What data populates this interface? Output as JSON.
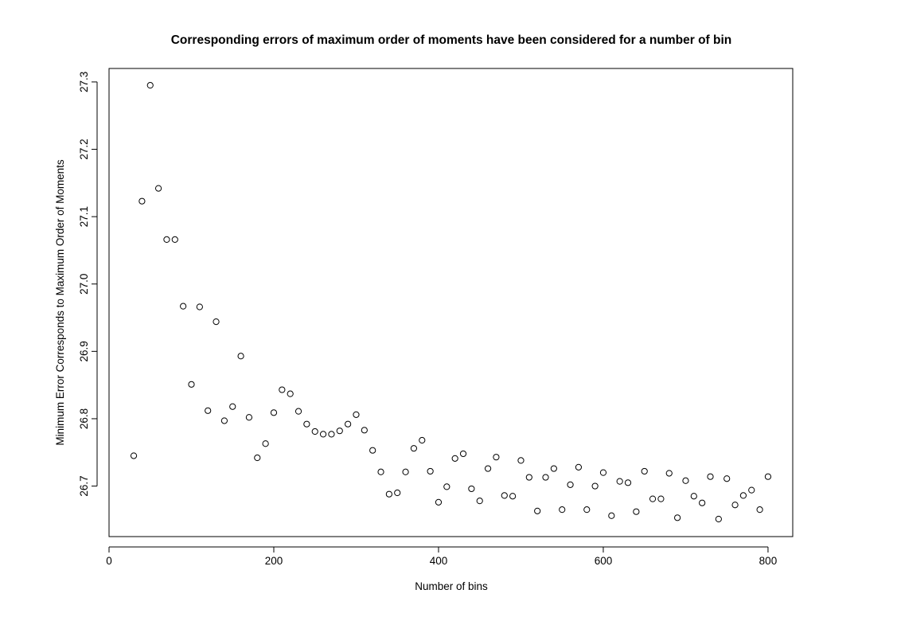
{
  "chart_data": {
    "type": "scatter",
    "title": "Corresponding errors of maximum order of moments have been considered for a number of bin",
    "xlabel": "Number of bins",
    "ylabel": "Minimum Error Corresponds to Maximum Order of Moments",
    "xlim": [
      0,
      830
    ],
    "ylim": [
      26.625,
      27.32
    ],
    "xticks": [
      0,
      200,
      400,
      600,
      800
    ],
    "yticks": [
      26.7,
      26.8,
      26.9,
      27.0,
      27.1,
      27.2,
      27.3
    ],
    "grid": false,
    "marker": "open-circle",
    "marker_color": "#000000",
    "x": [
      30,
      40,
      50,
      60,
      70,
      80,
      90,
      100,
      110,
      120,
      130,
      140,
      150,
      160,
      170,
      180,
      190,
      200,
      210,
      220,
      230,
      240,
      250,
      260,
      270,
      280,
      290,
      300,
      310,
      320,
      330,
      340,
      350,
      360,
      370,
      380,
      390,
      400,
      410,
      420,
      430,
      440,
      450,
      460,
      470,
      480,
      490,
      500,
      510,
      520,
      530,
      540,
      550,
      560,
      570,
      580,
      590,
      600,
      610,
      620,
      630,
      640,
      650,
      660,
      670,
      680,
      690,
      700,
      710,
      720,
      730,
      740,
      750,
      760,
      770,
      780,
      790,
      800
    ],
    "y": [
      26.745,
      27.123,
      27.295,
      27.142,
      27.066,
      27.066,
      26.967,
      26.851,
      26.966,
      26.812,
      26.944,
      26.797,
      26.818,
      26.893,
      26.802,
      26.742,
      26.763,
      26.809,
      26.843,
      26.837,
      26.811,
      26.792,
      26.781,
      26.777,
      26.777,
      26.782,
      26.792,
      26.806,
      26.783,
      26.753,
      26.721,
      26.688,
      26.69,
      26.721,
      26.756,
      26.768,
      26.722,
      26.676,
      26.699,
      26.741,
      26.748,
      26.696,
      26.678,
      26.726,
      26.743,
      26.686,
      26.685,
      26.738,
      26.713,
      26.663,
      26.713,
      26.726,
      26.665,
      26.702,
      26.728,
      26.665,
      26.7,
      26.72,
      26.656,
      26.707,
      26.705,
      26.662,
      26.722,
      26.681,
      26.681,
      26.719,
      26.653,
      26.708,
      26.685,
      26.675,
      26.714,
      26.651,
      26.711,
      26.672,
      26.686,
      26.694,
      26.665,
      26.714
    ]
  }
}
